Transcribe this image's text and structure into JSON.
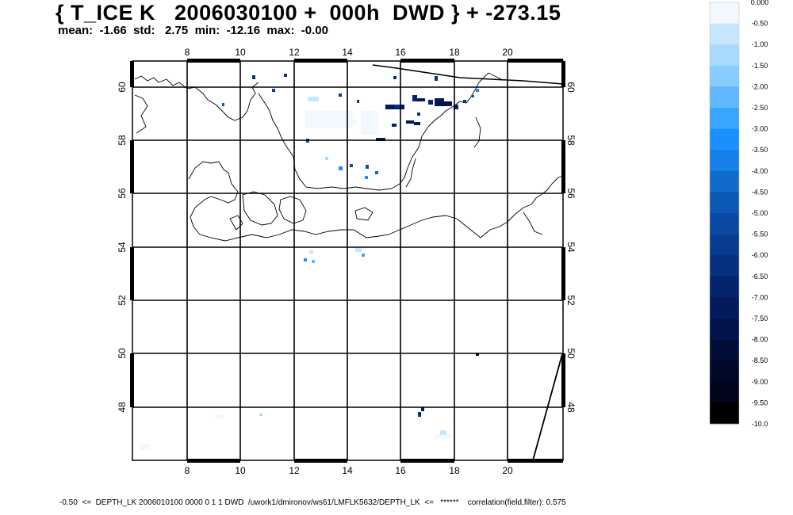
{
  "header": {
    "title": "{ T_ICE K   2006030100 +  000h  DWD } + -273.15",
    "stats": "mean:  -1.66  std:   2.75  min:  -12.16  max:  -0.00"
  },
  "footer": {
    "text": "-0.50  <=  DEPTH_LK 2006010100 0000 0 1 1 DWD  /uwork1/dmironov/ws61/LMFLK5632/DEPTH_LK  <=   ******    correlation(field,filter): 0.575"
  },
  "map": {
    "lon_ticks": [
      "8",
      "10",
      "12",
      "14",
      "16",
      "18",
      "20"
    ],
    "lat_ticks": [
      "60",
      "58",
      "56",
      "54",
      "52",
      "50",
      "48"
    ],
    "lon_range": [
      6.0,
      22.2
    ],
    "lat_range": [
      46.0,
      61.0
    ]
  },
  "colorbar": {
    "labels": [
      "0.000",
      "-0.50",
      "-1.00",
      "-1.50",
      "-2.00",
      "-2.50",
      "-3.00",
      "-3.50",
      "-4.00",
      "-4.50",
      "-5.00",
      "-5.50",
      "-6.00",
      "-6.50",
      "-7.00",
      "-7.50",
      "-8.00",
      "-8.50",
      "-9.00",
      "-9.50",
      "-10.0"
    ],
    "colors": [
      "#f2f8ff",
      "#c8e6ff",
      "#a9dbff",
      "#86ccff",
      "#5fb8ff",
      "#38a6ff",
      "#1a90ff",
      "#167fe8",
      "#106bcc",
      "#0c58b5",
      "#0a4aa3",
      "#083c92",
      "#063080",
      "#04246e",
      "#031b5c",
      "#02134a",
      "#020d38",
      "#010828",
      "#01041a",
      "#000000"
    ]
  }
}
